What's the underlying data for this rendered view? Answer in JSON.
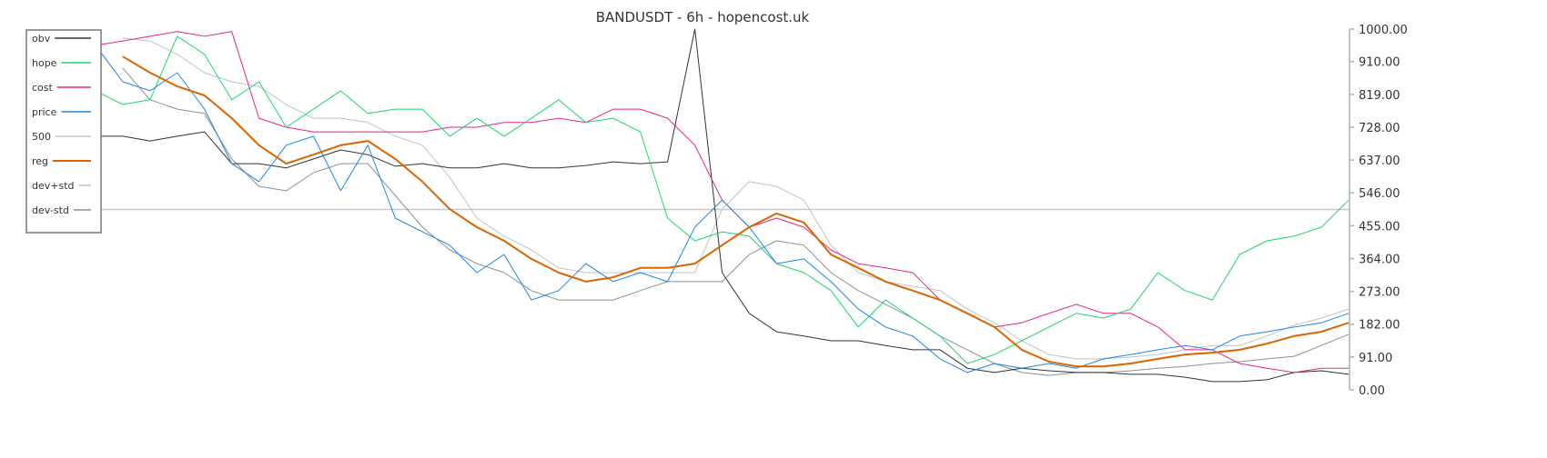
{
  "chart_data": {
    "type": "line",
    "title": "BANDUSDT - 6h - hopencost.uk",
    "xlabel": "",
    "ylabel": "",
    "ylim": [
      0,
      1000
    ],
    "y_ticks": [
      "1000.00",
      "910.00",
      "819.00",
      "728.00",
      "637.00",
      "546.00",
      "455.00",
      "364.00",
      "273.00",
      "182.00",
      "91.00",
      "0.00"
    ],
    "y_axis_position": "right",
    "grid": false,
    "legend_position": "top-left",
    "x": [
      0,
      1,
      2,
      3,
      4,
      5,
      6,
      7,
      8,
      9,
      10,
      11,
      12,
      13,
      14,
      15,
      16,
      17,
      18,
      19,
      20,
      21,
      22,
      23,
      24,
      25,
      26,
      27,
      28,
      29,
      30,
      31,
      32,
      33,
      34,
      35,
      36,
      37,
      38,
      39,
      40,
      41,
      42,
      43,
      44,
      45,
      46
    ],
    "series": [
      {
        "name": "obv",
        "color": "#333333",
        "width": 1,
        "values": [
          703,
          703,
          690,
          703,
          715,
          627,
          627,
          615,
          640,
          665,
          652,
          620,
          627,
          615,
          615,
          627,
          615,
          615,
          622,
          632,
          627,
          632,
          1000,
          325,
          212,
          161,
          149,
          136,
          136,
          123,
          111,
          111,
          60,
          48,
          60,
          53,
          48,
          48,
          43,
          43,
          35,
          23,
          23,
          28,
          48,
          53,
          43
        ]
      },
      {
        "name": "hope",
        "color": "#1fd66c",
        "width": 1,
        "values": [
          829,
          791,
          804,
          980,
          930,
          804,
          854,
          728,
          778,
          829,
          766,
          778,
          778,
          703,
          753,
          703,
          753,
          804,
          741,
          753,
          715,
          476,
          413,
          438,
          426,
          350,
          325,
          275,
          174,
          249,
          199,
          149,
          73,
          98,
          136,
          174,
          212,
          199,
          224,
          325,
          275,
          249,
          375,
          413,
          426,
          451,
          526
        ]
      },
      {
        "name": "cost",
        "color": "#e6268a",
        "width": 1,
        "values": [
          955,
          967,
          980,
          993,
          980,
          993,
          753,
          728,
          715,
          715,
          715,
          715,
          715,
          728,
          728,
          741,
          741,
          753,
          741,
          778,
          778,
          753,
          678,
          526,
          451,
          476,
          451,
          388,
          350,
          338,
          325,
          249,
          212,
          174,
          186,
          212,
          237,
          212,
          212,
          174,
          111,
          111,
          73,
          60,
          48,
          60,
          60
        ]
      },
      {
        "name": "price",
        "color": "#1e88e5",
        "width": 1,
        "values": [
          955,
          854,
          829,
          879,
          778,
          627,
          577,
          678,
          703,
          552,
          678,
          476,
          438,
          401,
          325,
          375,
          249,
          275,
          350,
          300,
          325,
          300,
          451,
          526,
          451,
          350,
          363,
          300,
          224,
          174,
          149,
          86,
          48,
          73,
          60,
          73,
          60,
          86,
          98,
          111,
          123,
          111,
          149,
          161,
          174,
          186,
          212
        ]
      },
      {
        "name": "500",
        "color": "#c8c8c8",
        "width": 1.5,
        "values": [
          500,
          500,
          500,
          500,
          500,
          500,
          500,
          500,
          500,
          500,
          500,
          500,
          500,
          500,
          500,
          500,
          500,
          500,
          500,
          500,
          500,
          500,
          500,
          500,
          500,
          500,
          500,
          500,
          500,
          500,
          500,
          500,
          500,
          500,
          500,
          500,
          500,
          500,
          500,
          500,
          500,
          500,
          500,
          500,
          500,
          500,
          500
        ]
      },
      {
        "name": "reg",
        "color": "#d96400",
        "width": 2,
        "values": [
          null,
          924,
          879,
          841,
          816,
          753,
          678,
          627,
          652,
          678,
          690,
          640,
          577,
          501,
          451,
          413,
          363,
          325,
          300,
          312,
          338,
          338,
          350,
          401,
          451,
          489,
          464,
          375,
          338,
          300,
          275,
          249,
          212,
          174,
          111,
          78,
          65,
          65,
          73,
          86,
          98,
          103,
          111,
          128,
          149,
          161,
          186
        ]
      },
      {
        "name": "dev+std",
        "color": "#bfc4c8",
        "width": 1,
        "values": [
          null,
          975,
          967,
          930,
          879,
          854,
          841,
          791,
          753,
          753,
          741,
          703,
          678,
          589,
          476,
          426,
          388,
          338,
          325,
          325,
          325,
          325,
          325,
          501,
          577,
          564,
          526,
          401,
          325,
          300,
          287,
          275,
          224,
          186,
          136,
          98,
          86,
          86,
          91,
          98,
          111,
          123,
          123,
          149,
          179,
          199,
          224
        ]
      },
      {
        "name": "dev-std",
        "color": "#8a9299",
        "width": 1,
        "values": [
          null,
          892,
          804,
          778,
          766,
          640,
          564,
          552,
          602,
          627,
          627,
          539,
          451,
          388,
          350,
          325,
          275,
          249,
          249,
          249,
          275,
          300,
          300,
          300,
          375,
          413,
          401,
          325,
          275,
          237,
          199,
          149,
          111,
          73,
          48,
          40,
          48,
          48,
          53,
          60,
          65,
          73,
          78,
          86,
          93,
          123,
          154
        ]
      }
    ]
  }
}
